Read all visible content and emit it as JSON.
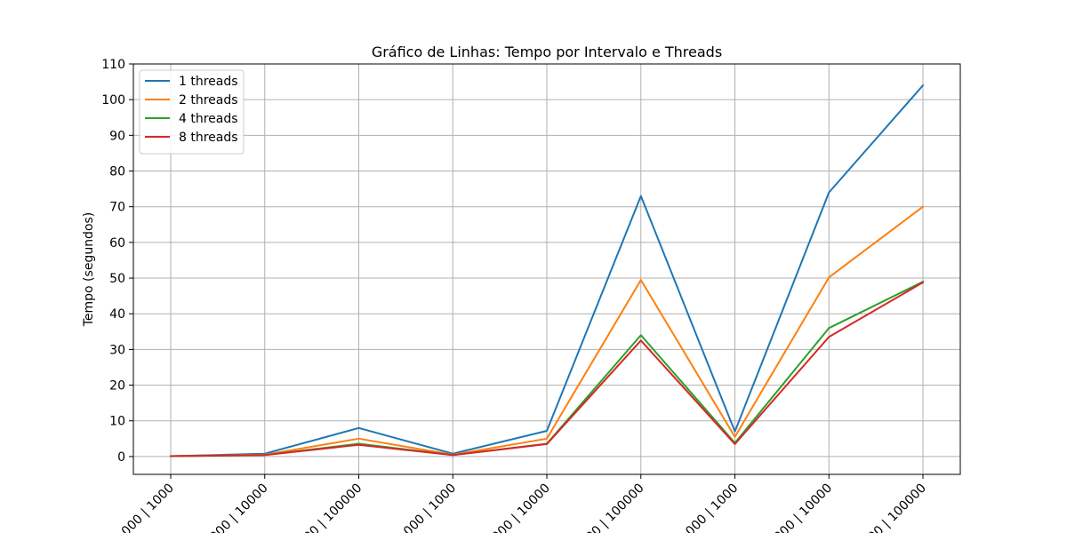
{
  "chart_data": {
    "type": "line",
    "title": "Gráfico de Linhas: Tempo por Intervalo e Threads",
    "xlabel": "",
    "ylabel": "Tempo (segundos)",
    "categories": [
      "000 | 1000",
      "000 | 10000",
      "00 | 100000",
      "000 | 1000",
      "000 | 10000",
      "00 | 100000",
      "000 | 1000",
      "000 | 10000",
      "00 | 100000"
    ],
    "ylim": [
      -5,
      110
    ],
    "yticks": [
      0,
      10,
      20,
      30,
      40,
      50,
      60,
      70,
      80,
      90,
      100,
      110
    ],
    "grid": true,
    "legend_position": "top-left",
    "series": [
      {
        "name": "1 threads",
        "color": "#1f77b4",
        "values": [
          0.1,
          0.8,
          8.0,
          0.8,
          7.2,
          73.0,
          7.0,
          74.0,
          104.0
        ]
      },
      {
        "name": "2 threads",
        "color": "#ff7f0e",
        "values": [
          0.1,
          0.5,
          5.0,
          0.5,
          5.0,
          49.5,
          5.5,
          50.2,
          70.0
        ]
      },
      {
        "name": "4 threads",
        "color": "#2ca02c",
        "values": [
          0.1,
          0.4,
          3.6,
          0.4,
          3.6,
          34.0,
          3.8,
          36.0,
          49.0
        ]
      },
      {
        "name": "8 threads",
        "color": "#d62728",
        "values": [
          0.1,
          0.4,
          3.3,
          0.4,
          3.5,
          32.5,
          3.5,
          33.5,
          48.8
        ]
      }
    ]
  }
}
